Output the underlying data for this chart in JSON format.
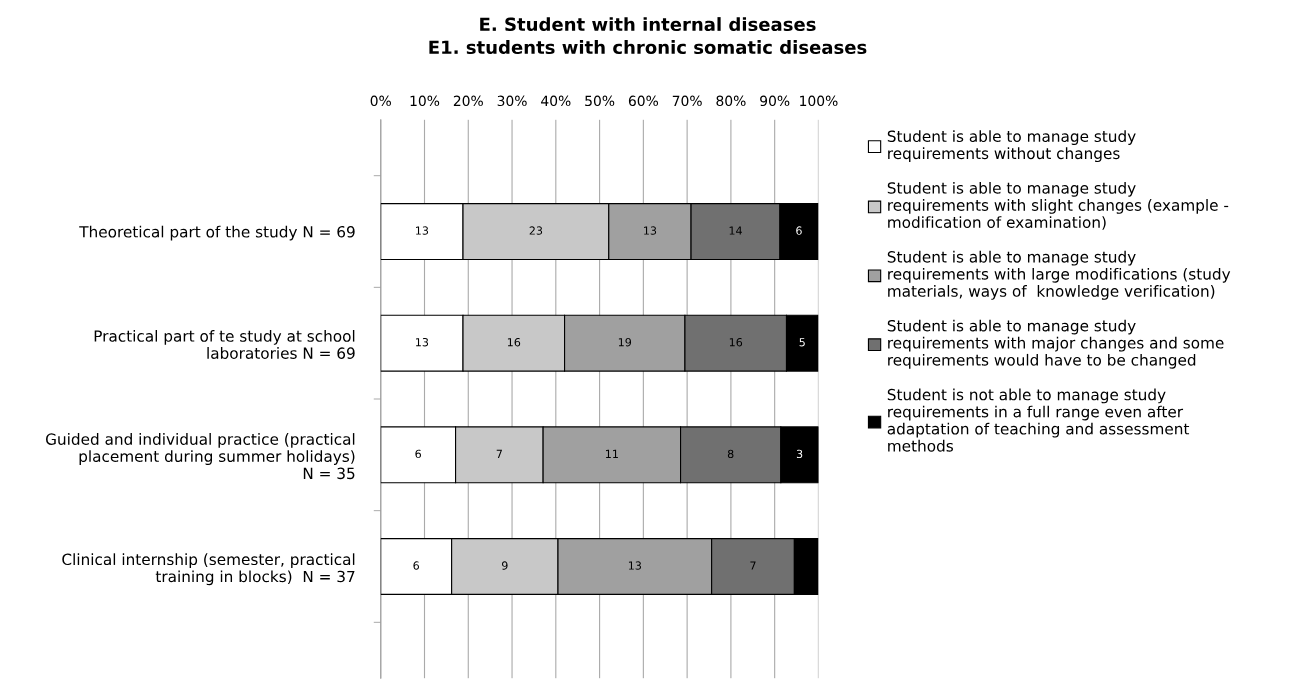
{
  "chart_data": {
    "type": "bar",
    "orientation": "horizontal",
    "stacked": true,
    "title": "E. Student with internal diseases\nE1. students with chronic somatic diseases",
    "categories": [
      "Theoretical part of the study N = 69",
      "Practical part of te study at school\nlaboratories N = 69",
      "Guided and individual practice (practical\nplacement during summer holidays)\nN = 35",
      "Clinical internship (semester, practical\ntraining in blocks)  N = 37"
    ],
    "series": [
      {
        "name": "Student is able to manage study\nrequirements without changes",
        "color": "#ffffff",
        "values": [
          18.8,
          18.8,
          17.1,
          16.2
        ]
      },
      {
        "name": "Student is able to manage study\nrequirements with slight changes (example -\nmodification of examination)",
        "color": "#c8c8c8",
        "values": [
          33.3,
          23.2,
          20.0,
          24.3
        ]
      },
      {
        "name": "Student is able to manage study\nrequirements with large modifications (study\nmaterials, ways of  knowledge verification)",
        "color": "#a0a0a0",
        "values": [
          18.8,
          27.5,
          31.4,
          35.1
        ]
      },
      {
        "name": "Student is able to manage study\nrequirements with major changes and some\nrequirements would have to be changed",
        "color": "#707070",
        "values": [
          20.3,
          23.2,
          22.9,
          18.9
        ]
      },
      {
        "name": "Student is not able to manage study\nrequirements in a full range even after\nadaptation of teaching and assessment\nmethods",
        "color": "#000000",
        "values": [
          8.7,
          7.2,
          8.6,
          5.4
        ]
      }
    ],
    "annotations": [
      "13",
      "23",
      "13",
      "14",
      "6",
      "13",
      "16",
      "19",
      "16",
      "5",
      "6",
      "7",
      "11",
      "8",
      "3",
      "6",
      "9",
      "13",
      "7"
    ],
    "xlim": [
      0,
      100
    ],
    "xticks": [
      {
        "value": 0,
        "label": "0%"
      },
      {
        "value": 10,
        "label": "10%"
      },
      {
        "value": 20,
        "label": "20%"
      },
      {
        "value": 30,
        "label": "30%"
      },
      {
        "value": 40,
        "label": "40%"
      },
      {
        "value": 50,
        "label": "50%"
      },
      {
        "value": 60,
        "label": "60%"
      },
      {
        "value": 70,
        "label": "70%"
      },
      {
        "value": 80,
        "label": "80%"
      },
      {
        "value": 90,
        "label": "90%"
      },
      {
        "value": 100,
        "label": "100%"
      }
    ],
    "grid": "x",
    "legend": "right"
  }
}
